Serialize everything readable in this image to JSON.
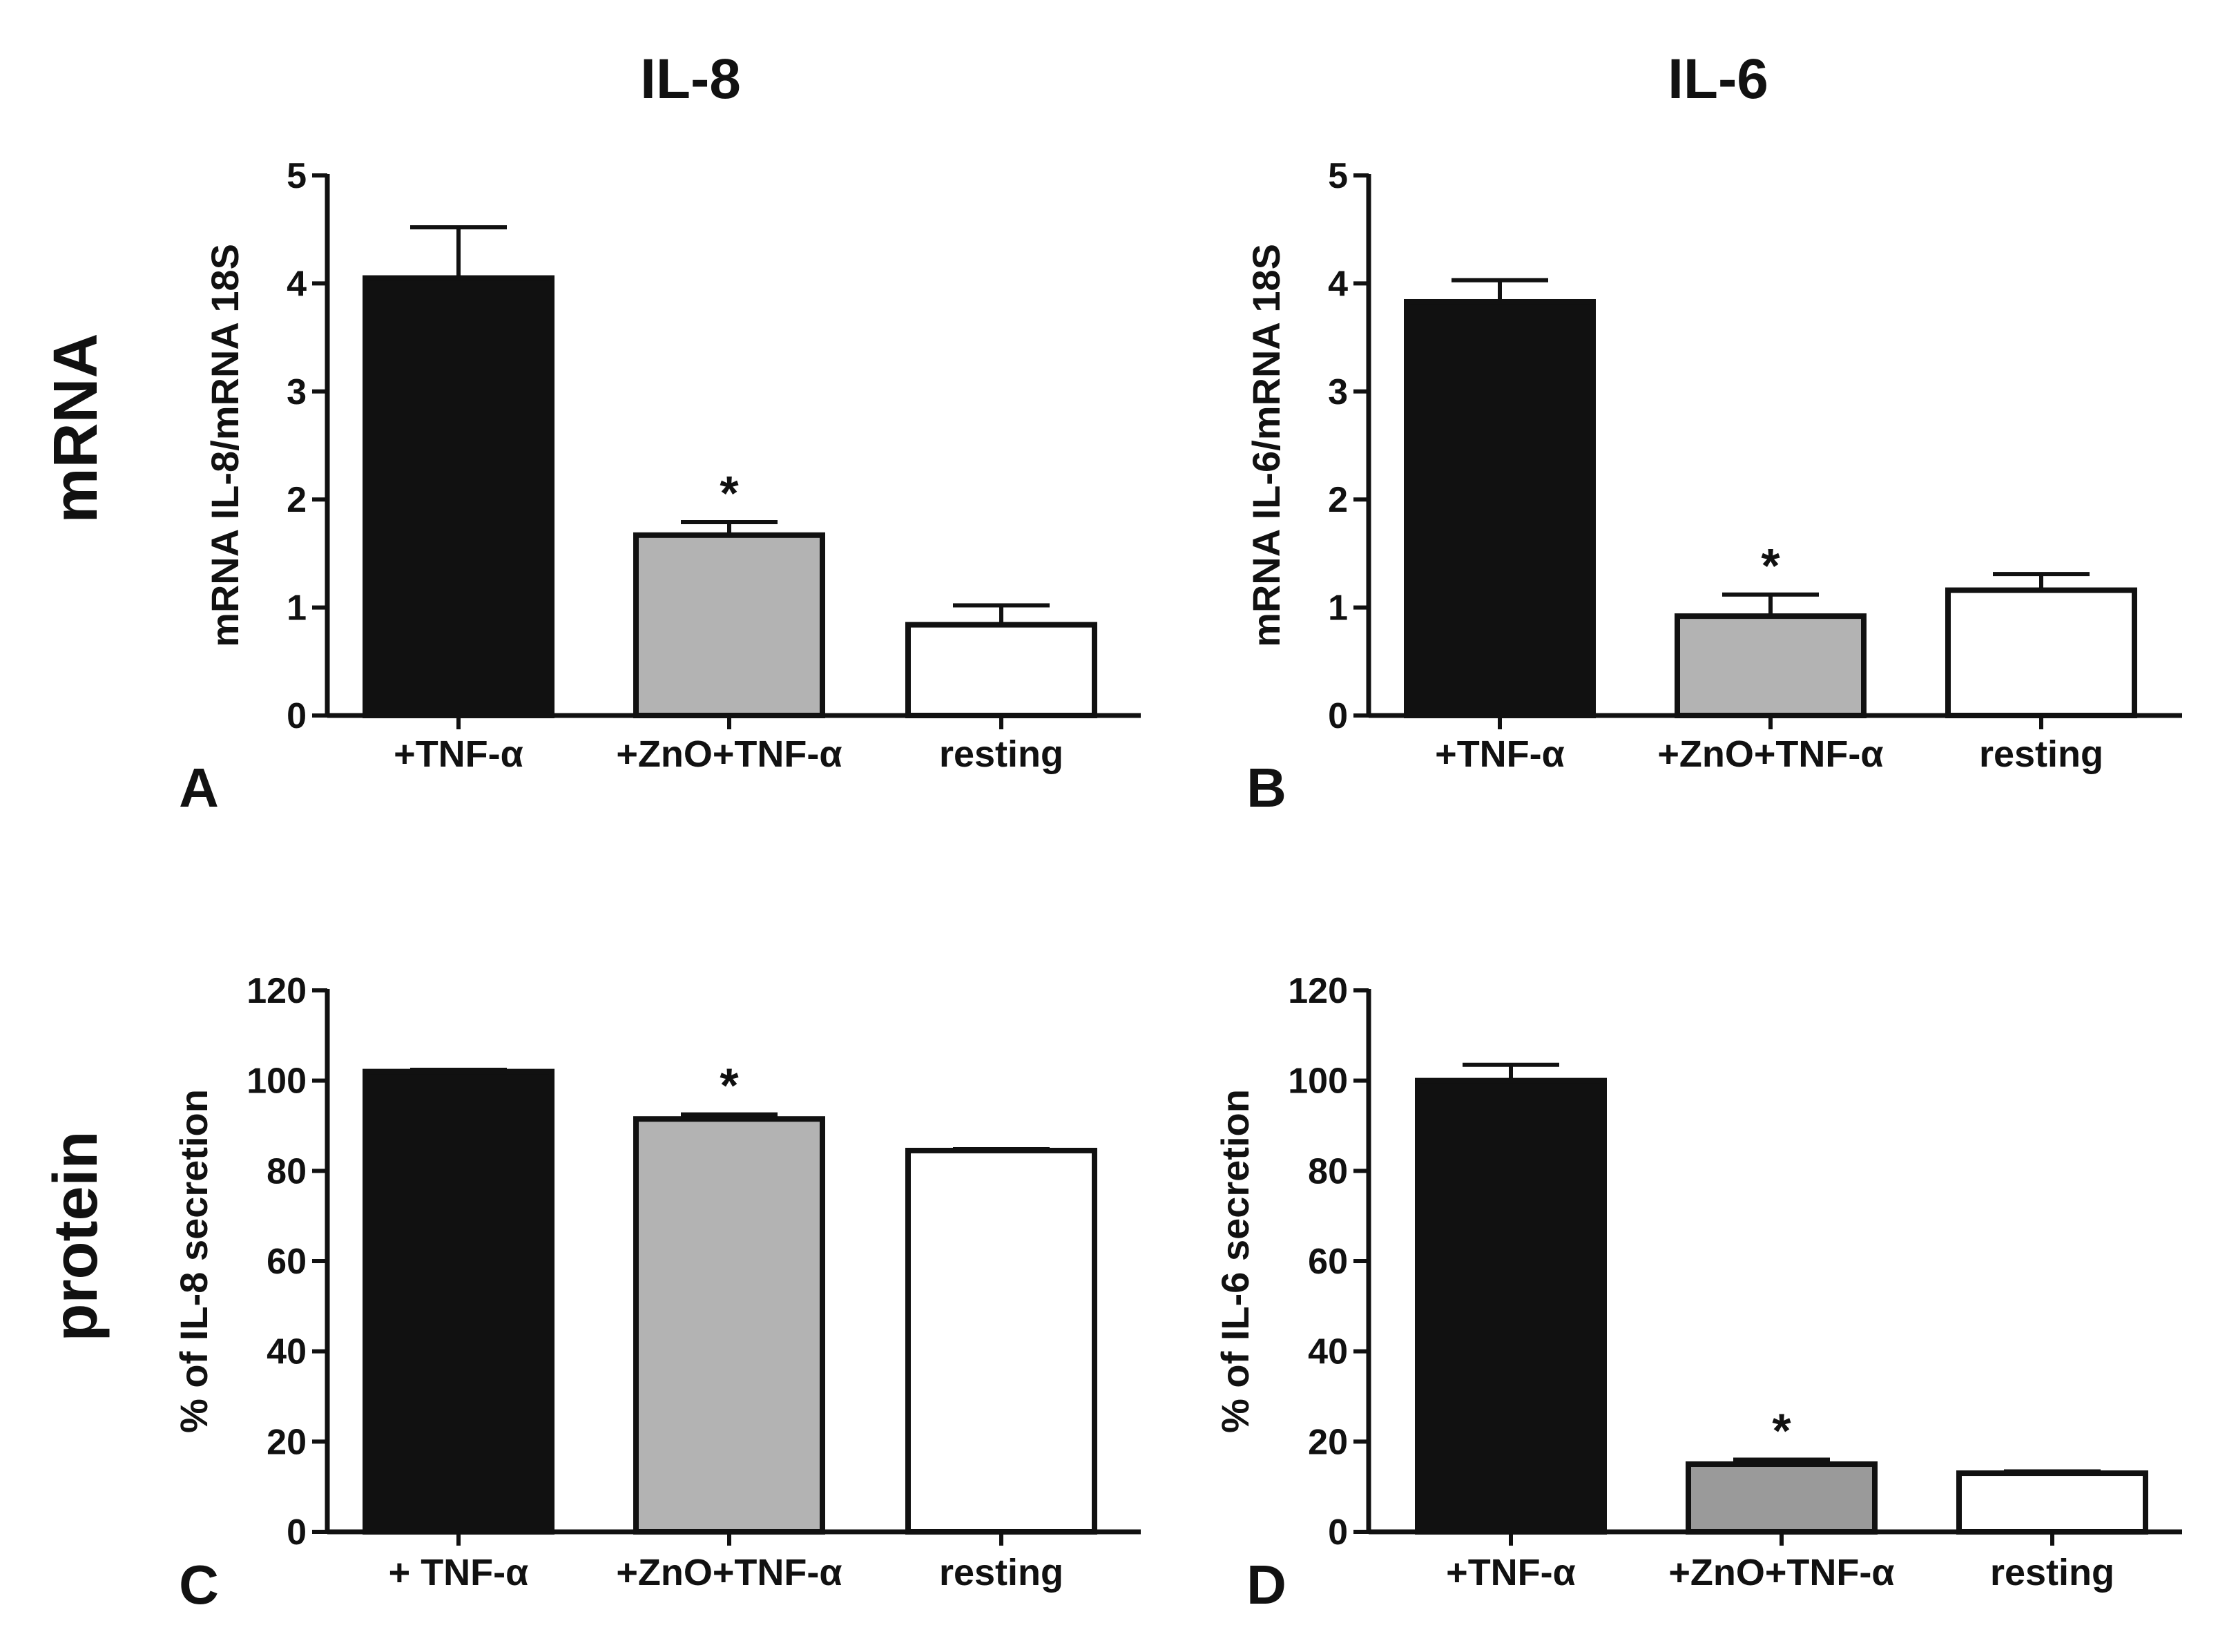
{
  "column_titles": [
    "IL-8",
    "IL-6"
  ],
  "row_titles": [
    "mRNA",
    "protein"
  ],
  "colors": {
    "bar_black": "#111111",
    "bar_gray_light": "#b3b3b3",
    "bar_gray_dark": "#9a9a9a",
    "bar_white": "#ffffff",
    "axis": "#111111"
  },
  "chart_data": [
    {
      "type": "bar",
      "panel_label": "A",
      "title": "IL-8",
      "ylabel": "mRNA IL-8/mRNA 18S",
      "categories": [
        "+TNF-α",
        "+ZnO+TNF-α",
        "resting"
      ],
      "values": [
        4.05,
        1.67,
        0.84
      ],
      "errors": [
        0.47,
        0.12,
        0.18
      ],
      "significance": [
        "",
        "*",
        ""
      ],
      "ylim": [
        0,
        5
      ],
      "yticks": [
        0,
        1,
        2,
        3,
        4,
        5
      ],
      "bar_colors": [
        "#111111",
        "#b3b3b3",
        "#ffffff"
      ]
    },
    {
      "type": "bar",
      "panel_label": "B",
      "title": "IL-6",
      "ylabel": "mRNA IL-6/mRNA 18S",
      "categories": [
        "+TNF-α",
        "+ZnO+TNF-α",
        "resting"
      ],
      "values": [
        3.83,
        0.92,
        1.16
      ],
      "errors": [
        0.2,
        0.2,
        0.15
      ],
      "significance": [
        "",
        "*",
        ""
      ],
      "ylim": [
        0,
        5
      ],
      "yticks": [
        0,
        1,
        2,
        3,
        4,
        5
      ],
      "bar_colors": [
        "#111111",
        "#b3b3b3",
        "#ffffff"
      ]
    },
    {
      "type": "bar",
      "panel_label": "C",
      "ylabel": "% of IL-8 secretion",
      "categories": [
        "+ TNF-α",
        "+ZnO+TNF-α",
        "resting"
      ],
      "values": [
        102,
        91.5,
        84.5
      ],
      "errors": [
        0.4,
        1.0,
        0.3
      ],
      "significance": [
        "",
        "*",
        ""
      ],
      "ylim": [
        0,
        120
      ],
      "yticks": [
        0,
        20,
        40,
        60,
        80,
        100,
        120
      ],
      "bar_colors": [
        "#111111",
        "#b3b3b3",
        "#ffffff"
      ]
    },
    {
      "type": "bar",
      "panel_label": "D",
      "ylabel": "% of IL-6 secretion",
      "categories": [
        "+TNF-α",
        "+ZnO+TNF-α",
        "resting"
      ],
      "values": [
        100,
        15,
        13
      ],
      "errors": [
        3.5,
        1.0,
        0.4
      ],
      "significance": [
        "",
        "*",
        ""
      ],
      "ylim": [
        0,
        120
      ],
      "yticks": [
        0,
        20,
        40,
        60,
        80,
        100,
        120
      ],
      "bar_colors": [
        "#111111",
        "#9a9a9a",
        "#ffffff"
      ]
    }
  ]
}
